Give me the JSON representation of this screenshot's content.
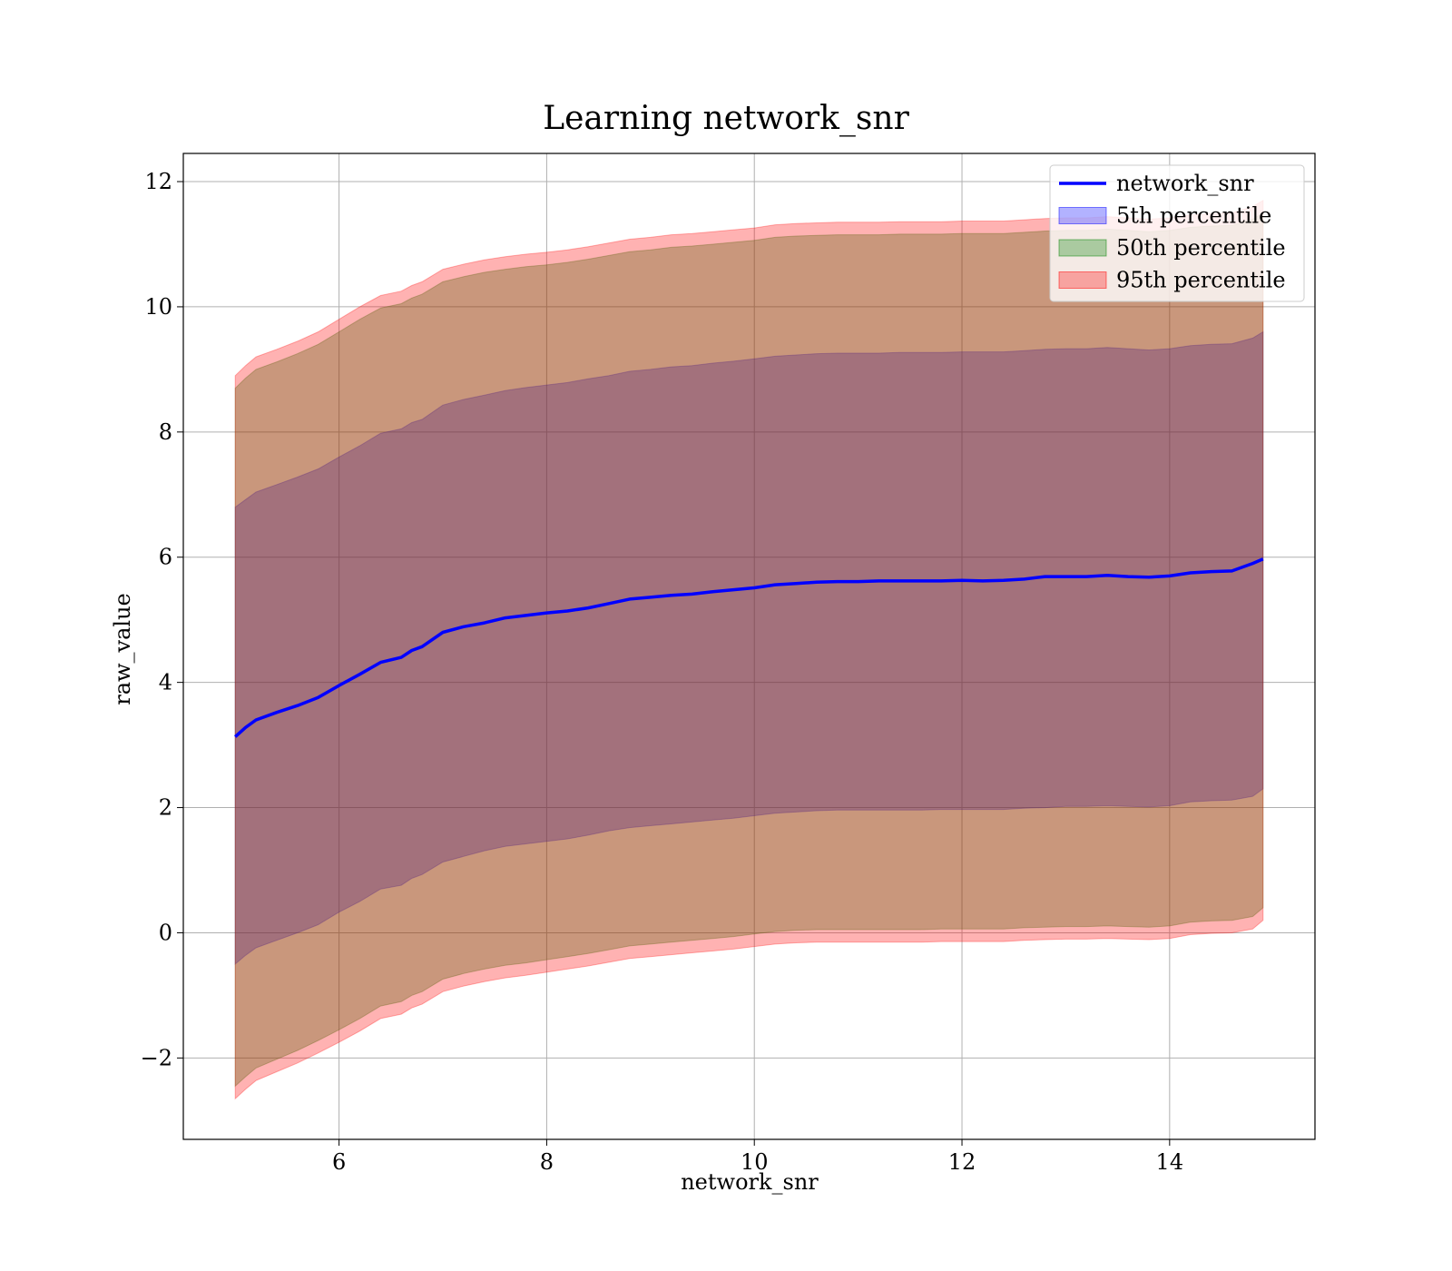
{
  "chart_data": {
    "type": "area",
    "title": "Learning network_snr",
    "xlabel": "network_snr",
    "ylabel": "raw_value",
    "xlim": [
      4.5,
      15.4
    ],
    "ylim": [
      -3.3,
      12.45
    ],
    "grid": true,
    "legend_position": "top-right",
    "x_ticks": [
      6,
      8,
      10,
      12,
      14
    ],
    "x_tick_labels": [
      "6",
      "8",
      "10",
      "12",
      "14"
    ],
    "y_ticks": [
      -2,
      0,
      2,
      4,
      6,
      8,
      10,
      12
    ],
    "y_tick_labels": [
      "−2",
      "0",
      "2",
      "4",
      "6",
      "8",
      "10",
      "12"
    ],
    "x": [
      5.0,
      5.1,
      5.2,
      5.4,
      5.6,
      5.8,
      6.0,
      6.2,
      6.4,
      6.6,
      6.7,
      6.8,
      7.0,
      7.2,
      7.4,
      7.6,
      7.8,
      8.0,
      8.2,
      8.4,
      8.6,
      8.8,
      9.0,
      9.2,
      9.4,
      9.6,
      9.8,
      10.0,
      10.2,
      10.4,
      10.6,
      10.8,
      11.0,
      11.2,
      11.4,
      11.6,
      11.8,
      12.0,
      12.2,
      12.4,
      12.6,
      12.8,
      13.0,
      13.2,
      13.4,
      13.6,
      13.8,
      14.0,
      14.2,
      14.4,
      14.6,
      14.8,
      14.9
    ],
    "series": [
      {
        "name": "network_snr",
        "color": "#0000ff",
        "values": [
          3.13,
          3.28,
          3.4,
          3.52,
          3.63,
          3.76,
          3.95,
          4.13,
          4.32,
          4.4,
          4.51,
          4.57,
          4.8,
          4.89,
          4.95,
          5.03,
          5.07,
          5.11,
          5.14,
          5.19,
          5.26,
          5.33,
          5.36,
          5.39,
          5.41,
          5.45,
          5.48,
          5.51,
          5.56,
          5.58,
          5.6,
          5.61,
          5.61,
          5.62,
          5.62,
          5.62,
          5.62,
          5.63,
          5.62,
          5.63,
          5.65,
          5.69,
          5.69,
          5.69,
          5.71,
          5.69,
          5.68,
          5.7,
          5.75,
          5.77,
          5.78,
          5.9,
          5.97
        ]
      }
    ],
    "bands": [
      {
        "name": "5th percentile",
        "color": "#0000ff",
        "alpha": 0.3,
        "lower": [
          -0.5,
          -0.36,
          -0.24,
          -0.12,
          0.0,
          0.13,
          0.33,
          0.5,
          0.7,
          0.76,
          0.87,
          0.93,
          1.13,
          1.22,
          1.31,
          1.38,
          1.42,
          1.46,
          1.5,
          1.56,
          1.63,
          1.68,
          1.71,
          1.74,
          1.77,
          1.8,
          1.83,
          1.87,
          1.91,
          1.93,
          1.95,
          1.96,
          1.96,
          1.96,
          1.96,
          1.96,
          1.97,
          1.97,
          1.97,
          1.97,
          1.99,
          2.0,
          2.02,
          2.02,
          2.03,
          2.02,
          2.01,
          2.03,
          2.09,
          2.11,
          2.12,
          2.18,
          2.3
        ],
        "upper": [
          6.8,
          6.92,
          7.04,
          7.16,
          7.28,
          7.41,
          7.6,
          7.78,
          7.98,
          8.05,
          8.15,
          8.2,
          8.43,
          8.52,
          8.59,
          8.66,
          8.71,
          8.75,
          8.79,
          8.85,
          8.9,
          8.97,
          9.0,
          9.04,
          9.06,
          9.1,
          9.13,
          9.17,
          9.21,
          9.23,
          9.25,
          9.26,
          9.26,
          9.26,
          9.27,
          9.27,
          9.27,
          9.28,
          9.28,
          9.28,
          9.3,
          9.32,
          9.33,
          9.33,
          9.35,
          9.33,
          9.31,
          9.33,
          9.38,
          9.4,
          9.41,
          9.5,
          9.6
        ]
      },
      {
        "name": "50th percentile",
        "color": "#008000",
        "alpha": 0.3,
        "lower": [
          -2.45,
          -2.3,
          -2.16,
          -2.02,
          -1.88,
          -1.72,
          -1.55,
          -1.37,
          -1.17,
          -1.1,
          -1.0,
          -0.94,
          -0.74,
          -0.65,
          -0.58,
          -0.52,
          -0.48,
          -0.43,
          -0.38,
          -0.33,
          -0.27,
          -0.21,
          -0.18,
          -0.15,
          -0.12,
          -0.09,
          -0.06,
          -0.02,
          0.02,
          0.04,
          0.05,
          0.05,
          0.05,
          0.05,
          0.05,
          0.05,
          0.06,
          0.06,
          0.06,
          0.06,
          0.08,
          0.09,
          0.1,
          0.1,
          0.11,
          0.1,
          0.09,
          0.11,
          0.17,
          0.19,
          0.2,
          0.26,
          0.4
        ],
        "upper": [
          8.7,
          8.86,
          9.0,
          9.12,
          9.25,
          9.4,
          9.6,
          9.8,
          9.98,
          10.05,
          10.14,
          10.2,
          10.4,
          10.48,
          10.55,
          10.6,
          10.64,
          10.67,
          10.71,
          10.76,
          10.82,
          10.88,
          10.91,
          10.95,
          10.97,
          11.0,
          11.03,
          11.06,
          11.11,
          11.13,
          11.14,
          11.15,
          11.15,
          11.15,
          11.16,
          11.16,
          11.16,
          11.17,
          11.17,
          11.17,
          11.19,
          11.21,
          11.22,
          11.22,
          11.24,
          11.22,
          11.2,
          11.22,
          11.27,
          11.29,
          11.3,
          11.4,
          11.5
        ]
      },
      {
        "name": "95th percentile",
        "color": "#ff0000",
        "alpha": 0.3,
        "lower": [
          -2.65,
          -2.5,
          -2.36,
          -2.22,
          -2.08,
          -1.92,
          -1.75,
          -1.57,
          -1.37,
          -1.3,
          -1.2,
          -1.14,
          -0.94,
          -0.85,
          -0.78,
          -0.72,
          -0.68,
          -0.63,
          -0.58,
          -0.53,
          -0.47,
          -0.41,
          -0.38,
          -0.35,
          -0.32,
          -0.29,
          -0.26,
          -0.22,
          -0.18,
          -0.16,
          -0.15,
          -0.15,
          -0.15,
          -0.15,
          -0.15,
          -0.15,
          -0.14,
          -0.14,
          -0.14,
          -0.14,
          -0.12,
          -0.11,
          -0.1,
          -0.1,
          -0.09,
          -0.1,
          -0.11,
          -0.09,
          -0.03,
          -0.01,
          0.0,
          0.06,
          0.2
        ],
        "upper": [
          8.9,
          9.06,
          9.2,
          9.32,
          9.45,
          9.6,
          9.8,
          10.0,
          10.18,
          10.25,
          10.34,
          10.4,
          10.6,
          10.68,
          10.75,
          10.8,
          10.84,
          10.87,
          10.91,
          10.96,
          11.02,
          11.08,
          11.11,
          11.15,
          11.17,
          11.2,
          11.23,
          11.26,
          11.31,
          11.33,
          11.34,
          11.35,
          11.35,
          11.35,
          11.36,
          11.36,
          11.36,
          11.37,
          11.37,
          11.37,
          11.39,
          11.41,
          11.42,
          11.42,
          11.44,
          11.42,
          11.4,
          11.42,
          11.47,
          11.49,
          11.5,
          11.6,
          11.7
        ]
      }
    ]
  }
}
